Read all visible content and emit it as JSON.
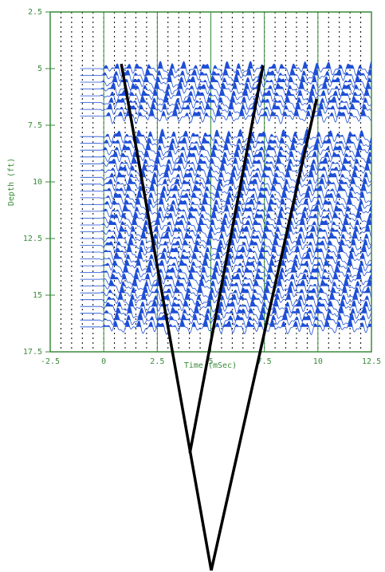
{
  "chart_data": {
    "type": "wiggle",
    "x_label": "Time (mSec)",
    "y_label": "Depth (ft)",
    "xlim": [
      -2.5,
      12.5
    ],
    "xticks": [
      -2.5,
      0,
      2.5,
      5,
      7.5,
      10,
      12.5
    ],
    "x_minor_step": 0.5,
    "ylim": [
      2.5,
      17.5
    ],
    "yticks": [
      2.5,
      5,
      7.5,
      10,
      12.5,
      15,
      17.5
    ],
    "y_inverted": true,
    "axis_color": "#3a8a3a",
    "trace_color": "#1f4fd6",
    "traces": {
      "start_x": -1.1,
      "depths": [
        5.0,
        5.3,
        5.6,
        5.9,
        6.2,
        6.5,
        6.8,
        7.1,
        8.0,
        8.3,
        8.6,
        8.9,
        9.2,
        9.5,
        9.8,
        10.1,
        10.4,
        10.7,
        11.0,
        11.3,
        11.6,
        11.9,
        12.2,
        12.5,
        12.8,
        13.1,
        13.4,
        13.7,
        14.0,
        14.3,
        14.6,
        14.9,
        15.2,
        15.5,
        15.8,
        16.1,
        16.4
      ]
    },
    "lines": [
      {
        "color": "#000000",
        "x": [
          0.82,
          5.02
        ],
        "y": [
          4.79,
          27.15
        ]
      },
      {
        "color": "#000000",
        "x": [
          9.94,
          5.02
        ],
        "y": [
          6.34,
          27.15
        ]
      },
      {
        "color": "#000000",
        "x": [
          7.44,
          4.02
        ],
        "y": [
          4.86,
          21.97
        ]
      }
    ]
  }
}
